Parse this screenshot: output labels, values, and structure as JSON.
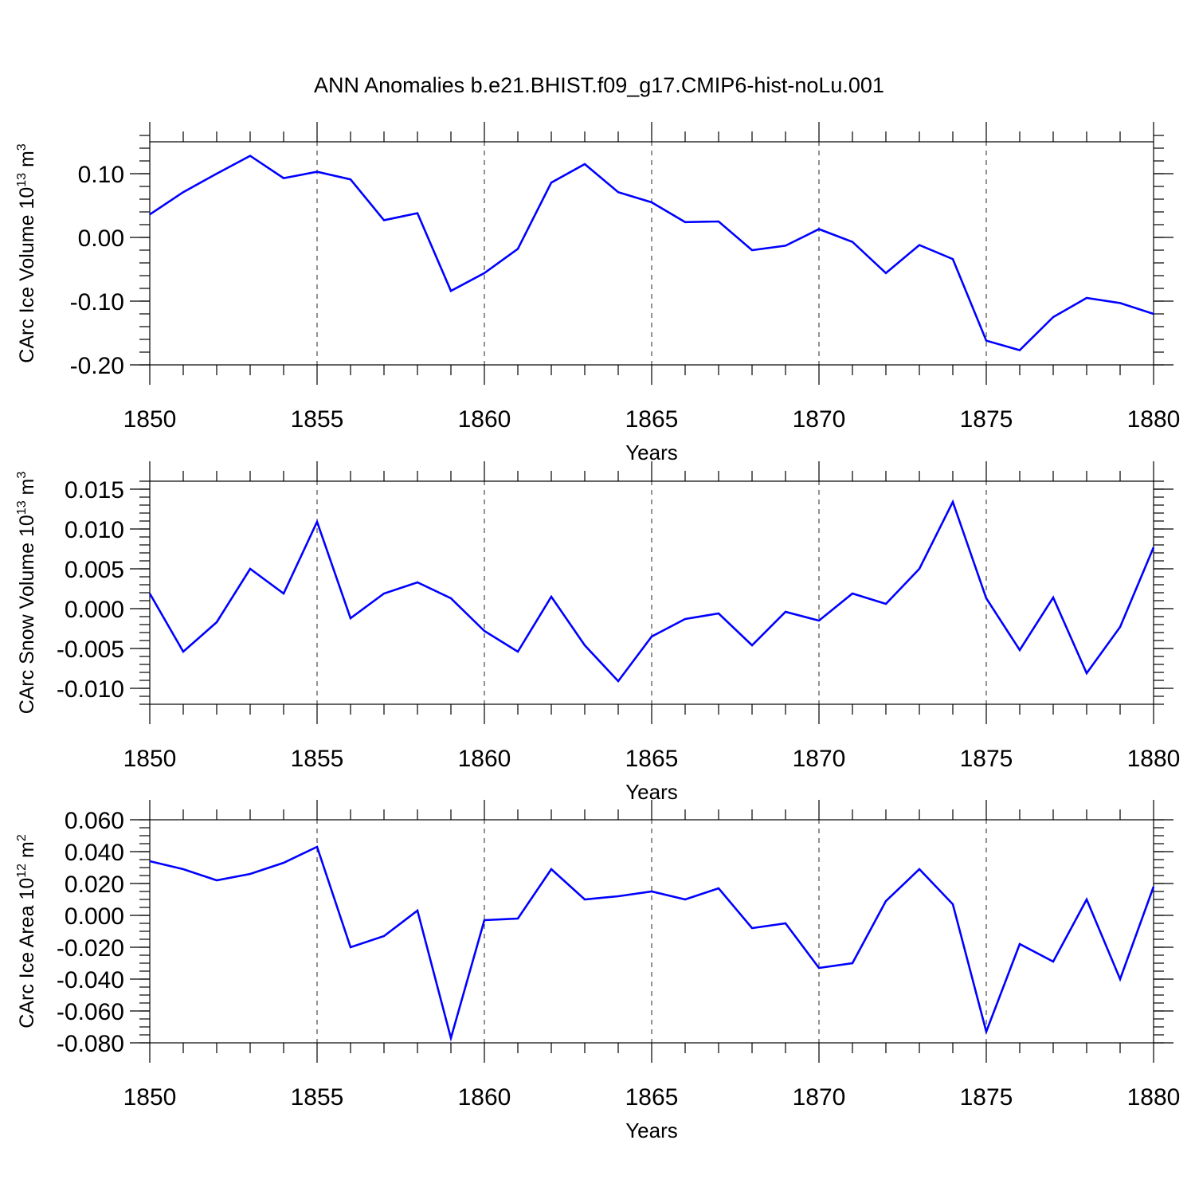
{
  "figure": {
    "title": "ANN Anomalies b.e21.BHIST.f09_g17.CMIP6-hist-noLu.001"
  },
  "chart_data": [
    {
      "type": "line",
      "ylabel": "CArc Ice Volume 10",
      "ylabel_exp": "13",
      "ylabel_unit": " m",
      "ylabel_unit_exp": "3",
      "xlabel": "Years",
      "xlim": [
        1850,
        1880
      ],
      "ylim": [
        -0.2,
        0.15
      ],
      "yticks": [
        -0.2,
        -0.1,
        0.0,
        0.1
      ],
      "ytick_labels": [
        "-0.20",
        "-0.10",
        "0.00",
        "0.10"
      ],
      "yminor_step": 0.02,
      "xticks": [
        1850,
        1855,
        1860,
        1865,
        1870,
        1875,
        1880
      ],
      "xtick_labels": [
        "1850",
        "1855",
        "1860",
        "1865",
        "1870",
        "1875",
        "1880"
      ],
      "grid": "x-dashed",
      "line_color": "#0000ff",
      "series": [
        {
          "name": "CArc Ice Volume",
          "x": [
            1850,
            1851,
            1852,
            1853,
            1854,
            1855,
            1856,
            1857,
            1858,
            1859,
            1860,
            1861,
            1862,
            1863,
            1864,
            1865,
            1866,
            1867,
            1868,
            1869,
            1870,
            1871,
            1872,
            1873,
            1874,
            1875,
            1876,
            1877,
            1878,
            1879,
            1880
          ],
          "values": [
            0.036,
            0.071,
            0.1,
            0.128,
            0.093,
            0.103,
            0.091,
            0.027,
            0.038,
            -0.084,
            -0.056,
            -0.018,
            0.086,
            0.115,
            0.071,
            0.055,
            0.024,
            0.025,
            -0.02,
            -0.013,
            0.013,
            -0.007,
            -0.056,
            -0.012,
            -0.034,
            -0.162,
            -0.177,
            -0.125,
            -0.095,
            -0.103,
            -0.12
          ]
        }
      ]
    },
    {
      "type": "line",
      "ylabel": "CArc Snow Volume 10",
      "ylabel_exp": "13",
      "ylabel_unit": " m",
      "ylabel_unit_exp": "3",
      "xlabel": "Years",
      "xlim": [
        1850,
        1880
      ],
      "ylim": [
        -0.012,
        0.016
      ],
      "yticks": [
        -0.01,
        -0.005,
        0.0,
        0.005,
        0.01,
        0.015
      ],
      "ytick_labels": [
        "-0.010",
        "-0.005",
        "0.000",
        "0.005",
        "0.010",
        "0.015"
      ],
      "yminor_step": 0.001,
      "xticks": [
        1850,
        1855,
        1860,
        1865,
        1870,
        1875,
        1880
      ],
      "xtick_labels": [
        "1850",
        "1855",
        "1860",
        "1865",
        "1870",
        "1875",
        "1880"
      ],
      "grid": "x-dashed",
      "line_color": "#0000ff",
      "series": [
        {
          "name": "CArc Snow Volume",
          "x": [
            1850,
            1851,
            1852,
            1853,
            1854,
            1855,
            1856,
            1857,
            1858,
            1859,
            1860,
            1861,
            1862,
            1863,
            1864,
            1865,
            1866,
            1867,
            1868,
            1869,
            1870,
            1871,
            1872,
            1873,
            1874,
            1875,
            1876,
            1877,
            1878,
            1879,
            1880
          ],
          "values": [
            0.0019,
            -0.0054,
            -0.0017,
            0.005,
            0.0019,
            0.0109,
            -0.0012,
            0.0019,
            0.0033,
            0.0013,
            -0.0028,
            -0.0054,
            0.0015,
            -0.0046,
            -0.0091,
            -0.0035,
            -0.0013,
            -0.0006,
            -0.0046,
            -0.0004,
            -0.0015,
            0.0019,
            0.0006,
            0.005,
            0.0134,
            0.0013,
            -0.0052,
            0.0014,
            -0.0081,
            -0.0023,
            0.0077
          ]
        }
      ]
    },
    {
      "type": "line",
      "ylabel": "CArc Ice Area 10",
      "ylabel_exp": "12",
      "ylabel_unit": " m",
      "ylabel_unit_exp": "2",
      "xlabel": "Years",
      "xlim": [
        1850,
        1880
      ],
      "ylim": [
        -0.08,
        0.06
      ],
      "yticks": [
        -0.08,
        -0.06,
        -0.04,
        -0.02,
        0.0,
        0.02,
        0.04,
        0.06
      ],
      "ytick_labels": [
        "-0.080",
        "-0.060",
        "-0.040",
        "-0.020",
        "0.000",
        "0.020",
        "0.040",
        "0.060"
      ],
      "yminor_step": 0.005,
      "xticks": [
        1850,
        1855,
        1860,
        1865,
        1870,
        1875,
        1880
      ],
      "xtick_labels": [
        "1850",
        "1855",
        "1860",
        "1865",
        "1870",
        "1875",
        "1880"
      ],
      "grid": "x-dashed",
      "line_color": "#0000ff",
      "series": [
        {
          "name": "CArc Ice Area",
          "x": [
            1850,
            1851,
            1852,
            1853,
            1854,
            1855,
            1856,
            1857,
            1858,
            1859,
            1860,
            1861,
            1862,
            1863,
            1864,
            1865,
            1866,
            1867,
            1868,
            1869,
            1870,
            1871,
            1872,
            1873,
            1874,
            1875,
            1876,
            1877,
            1878,
            1879,
            1880
          ],
          "values": [
            0.034,
            0.029,
            0.022,
            0.026,
            0.033,
            0.043,
            -0.02,
            -0.013,
            0.003,
            -0.077,
            -0.003,
            -0.002,
            0.029,
            0.01,
            0.012,
            0.015,
            0.01,
            0.017,
            -0.008,
            -0.005,
            -0.033,
            -0.03,
            0.009,
            0.029,
            0.007,
            -0.073,
            -0.018,
            -0.029,
            0.01,
            -0.04,
            0.018
          ]
        }
      ]
    }
  ]
}
